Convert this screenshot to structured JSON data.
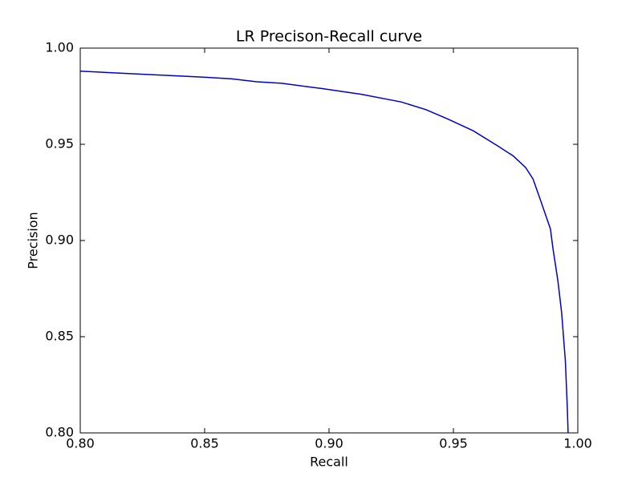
{
  "chart_data": {
    "type": "line",
    "title": "LR Precison-Recall curve",
    "x_label": "Recall",
    "y_label": "Precision",
    "xlim": [
      0.8,
      1.0
    ],
    "ylim": [
      0.8,
      1.0
    ],
    "xticks": [
      {
        "value": 0.8,
        "label": "0.80"
      },
      0.85,
      {
        "value": 0.9,
        "label": "0.90"
      },
      0.95,
      {
        "value": 1.0,
        "label": "1.00"
      }
    ],
    "yticks": [
      {
        "value": 0.8,
        "label": "0.80"
      },
      0.85,
      {
        "value": 0.9,
        "label": "0.90"
      },
      0.95,
      {
        "value": 1.0,
        "label": "1.00"
      }
    ],
    "grid": false,
    "series": [
      {
        "color": "#0000cc",
        "x": [
          0.8,
          0.816,
          0.832,
          0.848,
          0.861,
          0.871,
          0.881,
          0.897,
          0.913,
          0.929,
          0.939,
          0.948,
          0.958,
          0.968,
          0.974,
          0.979,
          0.982,
          0.985,
          0.989,
          0.99,
          0.992,
          0.9935,
          0.995,
          0.9958,
          0.9961
        ],
        "values": [
          0.988,
          0.987,
          0.986,
          0.985,
          0.984,
          0.9825,
          0.9817,
          0.979,
          0.976,
          0.972,
          0.968,
          0.963,
          0.957,
          0.949,
          0.944,
          0.938,
          0.932,
          0.921,
          0.906,
          0.896,
          0.879,
          0.8625,
          0.8375,
          0.8125,
          0.8
        ]
      }
    ]
  }
}
